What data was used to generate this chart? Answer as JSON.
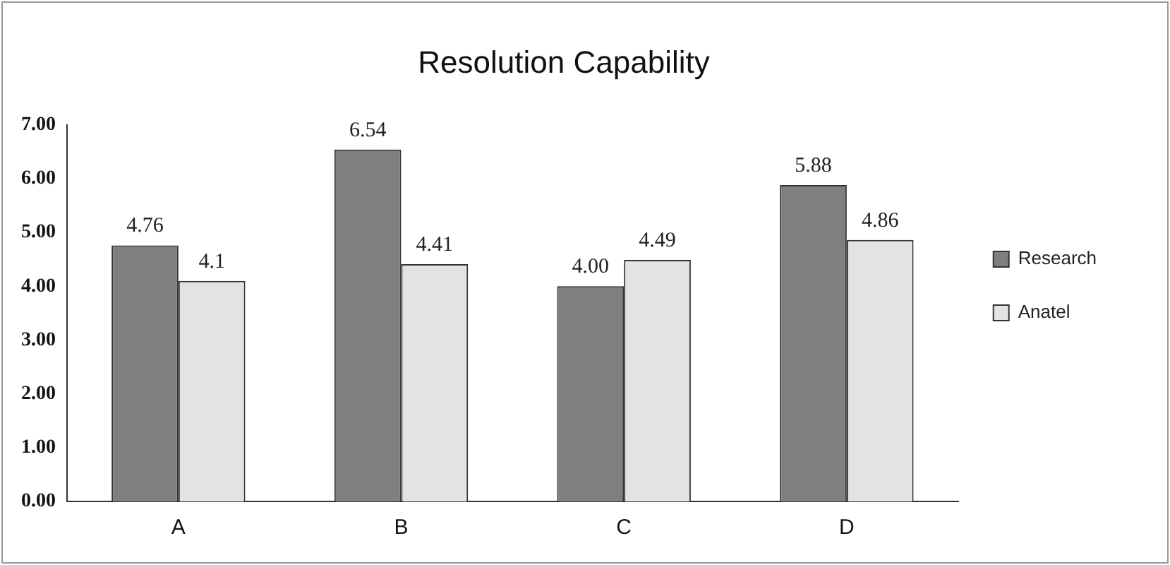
{
  "chart_data": {
    "type": "bar",
    "title": "Resolution Capability",
    "categories": [
      "A",
      "B",
      "C",
      "D"
    ],
    "series": [
      {
        "name": "Research",
        "color": "#7f7f7f",
        "values": [
          4.76,
          6.54,
          4.0,
          5.88
        ],
        "value_labels": [
          "4.76",
          "6.54",
          "4.00",
          "5.88"
        ]
      },
      {
        "name": "Anatel",
        "color": "#e3e3e3",
        "values": [
          4.1,
          4.41,
          4.49,
          4.86
        ],
        "value_labels": [
          "4.1",
          "4.41",
          "4.49",
          "4.86"
        ]
      }
    ],
    "ylim": [
      0,
      7
    ],
    "yticks": [
      {
        "value": 0,
        "label": "0.00"
      },
      {
        "value": 1,
        "label": "1.00"
      },
      {
        "value": 2,
        "label": "2.00"
      },
      {
        "value": 3,
        "label": "3.00"
      },
      {
        "value": 4,
        "label": "4.00"
      },
      {
        "value": 5,
        "label": "5.00"
      },
      {
        "value": 6,
        "label": "6.00"
      },
      {
        "value": 7,
        "label": "7.00"
      }
    ],
    "grid": false,
    "legend": "right"
  }
}
